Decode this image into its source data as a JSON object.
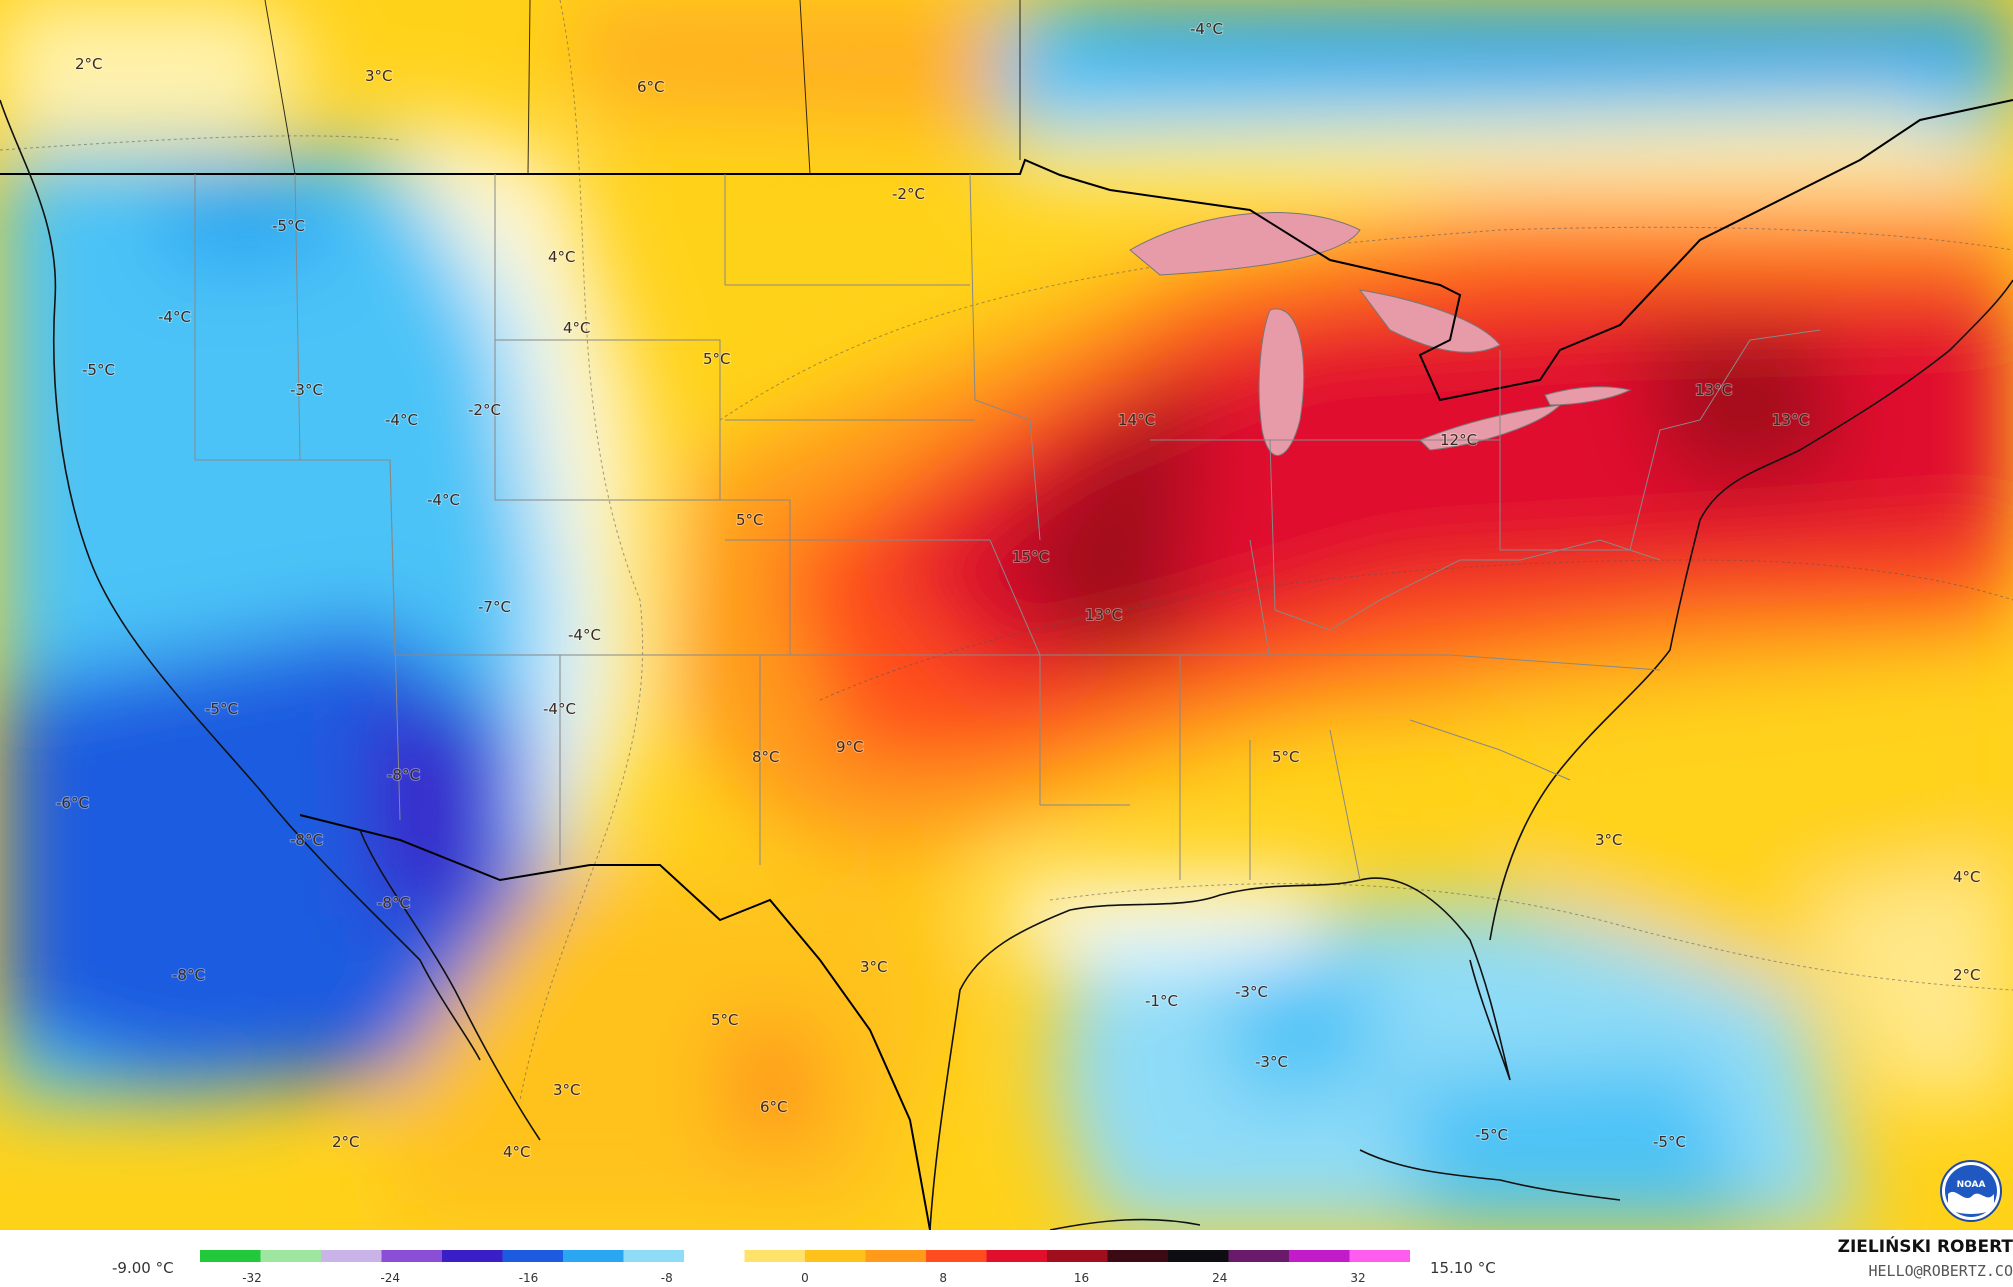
{
  "legend": {
    "min_value": "-9.00 °C",
    "max_value": "15.10 °C",
    "ticks": [
      "-32",
      "-24",
      "-16",
      "-8",
      "0",
      "8",
      "16",
      "24",
      "32"
    ],
    "colors": [
      "#22c93a",
      "#9fe6a0",
      "#c9b3e8",
      "#8a4fd6",
      "#3a1fc9",
      "#1d5ce0",
      "#2ba6f2",
      "#8fdcf7",
      "#ffffff",
      "#ffe26a",
      "#ffc21a",
      "#ff9a1a",
      "#ff4d1f",
      "#e0102d",
      "#a10e1e",
      "#3b0a14",
      "#0d0d12",
      "#6a1a6a",
      "#c21bc9",
      "#ff5cf0"
    ]
  },
  "credit": {
    "name": "ZIELIŃSKI ROBERT",
    "email": "HELLO@ROBERTZ.CO"
  },
  "logo": "noaa-logo",
  "labels": [
    {
      "text": "-4°C"
    },
    {
      "text": "2°C"
    },
    {
      "text": "3°C"
    },
    {
      "text": "6°C"
    },
    {
      "text": "-2°C"
    },
    {
      "text": "-5°C"
    },
    {
      "text": "4°C"
    },
    {
      "text": "-4°C"
    },
    {
      "text": "-5°C"
    },
    {
      "text": "-3°C"
    },
    {
      "text": "4°C"
    },
    {
      "text": "5°C"
    },
    {
      "text": "-4°C"
    },
    {
      "text": "-2°C"
    },
    {
      "text": "14°C"
    },
    {
      "text": "13°C"
    },
    {
      "text": "13°C"
    },
    {
      "text": "12°C"
    },
    {
      "text": "-4°C"
    },
    {
      "text": "5°C"
    },
    {
      "text": "15°C"
    },
    {
      "text": "-7°C"
    },
    {
      "text": "-4°C"
    },
    {
      "text": "13°C"
    },
    {
      "text": "-5°C"
    },
    {
      "text": "-4°C"
    },
    {
      "text": "8°C"
    },
    {
      "text": "9°C"
    },
    {
      "text": "5°C"
    },
    {
      "text": "-8°C"
    },
    {
      "text": "-6°C"
    },
    {
      "text": "-8°C"
    },
    {
      "text": "3°C"
    },
    {
      "text": "4°C"
    },
    {
      "text": "-8°C"
    },
    {
      "text": "-8°C"
    },
    {
      "text": "3°C"
    },
    {
      "text": "-1°C"
    },
    {
      "text": "-3°C"
    },
    {
      "text": "2°C"
    },
    {
      "text": "5°C"
    },
    {
      "text": "-3°C"
    },
    {
      "text": "3°C"
    },
    {
      "text": "6°C"
    },
    {
      "text": "2°C"
    },
    {
      "text": "4°C"
    },
    {
      "text": "-5°C"
    },
    {
      "text": "-5°C"
    }
  ]
}
